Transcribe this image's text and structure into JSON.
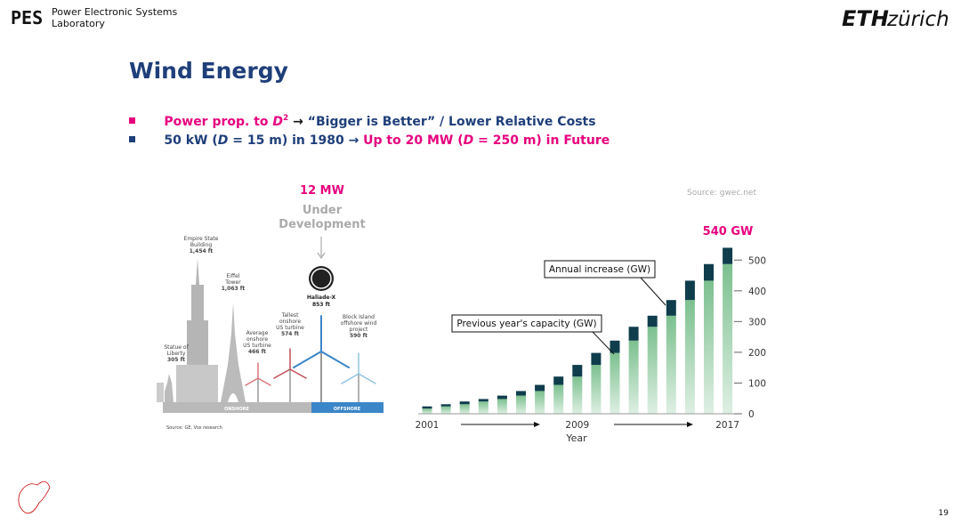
{
  "header": {
    "logo": "PES",
    "lab": [
      "Power Electronic Systems",
      "Laboratory"
    ],
    "eth": "ETH",
    "zurich": "zürich"
  },
  "title": "Wind Energy",
  "bullets": [
    [
      "Power prop. to ",
      "D",
      "2",
      " → ",
      "“Bigger is Better” / Lower Relative Costs"
    ],
    [
      "50 kW (",
      "D",
      " = 15 m) in 1980 → ",
      "Up to 20 MW (",
      "D",
      " = 250 m) in Future"
    ]
  ],
  "illustration": {
    "headline": "12 MW",
    "status": [
      "Under",
      "Development"
    ],
    "ge": "Haliade-X",
    "ge_height": "853 ft",
    "labels": [
      {
        "name": [
          "Statue of",
          "Liberty"
        ],
        "height": "305 ft"
      },
      {
        "name": [
          "Empire State",
          "Building"
        ],
        "height": "1,454 ft"
      },
      {
        "name": [
          "Eiffel",
          "Tower"
        ],
        "height": "1,063 ft"
      },
      {
        "name": [
          "Average",
          "onshore",
          "US turbine"
        ],
        "height": "466 ft"
      },
      {
        "name": [
          "Tallest",
          "onshore",
          "US turbine"
        ],
        "height": "574 ft"
      },
      {
        "name": [
          "Block Island",
          "offshore wind",
          "project"
        ],
        "height": "590 ft"
      }
    ],
    "onshore": "ONSHORE",
    "offshore": "OFFSHORE",
    "source": "Source: GE, Vox research"
  },
  "chart_data": {
    "type": "bar",
    "stacked": true,
    "categories": [
      "2001",
      null,
      null,
      null,
      null,
      null,
      null,
      null,
      "2009",
      null,
      null,
      null,
      null,
      null,
      null,
      null,
      "2017"
    ],
    "series": [
      {
        "name": "Previous year's capacity (GW)",
        "color": "#7cc08f",
        "values": [
          17,
          24,
          31,
          40,
          48,
          59,
          74,
          94,
          121,
          159,
          198,
          238,
          283,
          319,
          370,
          433,
          487
        ]
      },
      {
        "name": "Annual increase (GW)",
        "color": "#0f3d4c",
        "values": [
          7,
          7,
          9,
          8,
          11,
          15,
          20,
          27,
          38,
          39,
          40,
          45,
          36,
          51,
          63,
          54,
          53
        ]
      }
    ],
    "ylim": [
      0,
      550
    ],
    "yticks": [
      0,
      100,
      200,
      300,
      400,
      500
    ],
    "y_axis_side": "right",
    "xlabel": "Year",
    "annotation": "540 GW",
    "source": "Source: gwec.net"
  },
  "page_number": 19
}
